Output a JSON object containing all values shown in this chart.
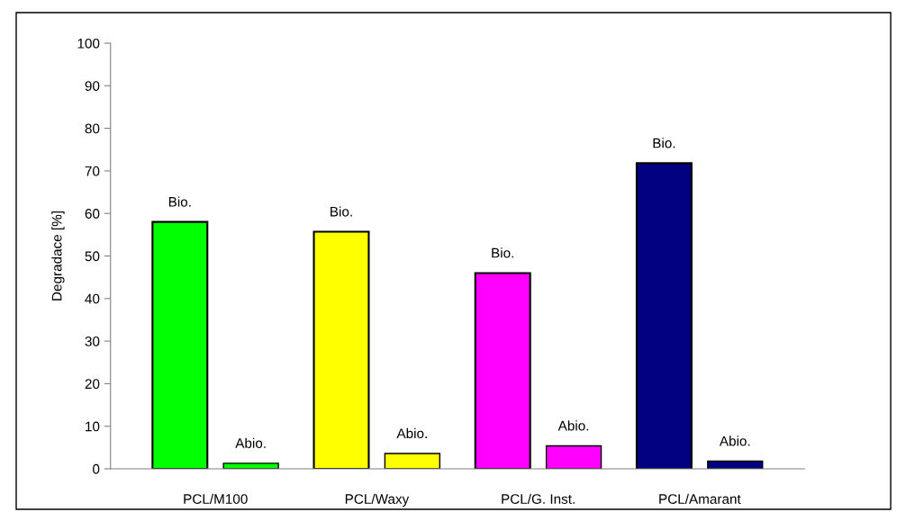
{
  "chart_data": {
    "type": "bar",
    "ylabel": "Degradace [%]",
    "categories": [
      "PCL/M100",
      "PCL/Waxy",
      "PCL/G. Inst.",
      "PCL/Amarant"
    ],
    "series": [
      {
        "colors": [
          "#00ff00",
          "#ffff00",
          "#ff00ff",
          "#000080"
        ],
        "values": [
          58,
          55.7,
          46,
          71.8
        ],
        "value_labels": [
          "Bio.",
          "Bio.",
          "Bio.",
          "Bio."
        ]
      },
      {
        "colors": [
          "#00ff00",
          "#ffff00",
          "#ff00ff",
          "#000080"
        ],
        "values": [
          1.3,
          3.6,
          5.4,
          1.8
        ],
        "value_labels": [
          "Abio.",
          "Abio.",
          "Abio.",
          "Abio."
        ]
      }
    ],
    "ylim": [
      0,
      100
    ],
    "yticks": [
      0,
      10,
      20,
      30,
      40,
      50,
      60,
      70,
      80,
      90,
      100
    ],
    "grid": false,
    "legend": false
  }
}
